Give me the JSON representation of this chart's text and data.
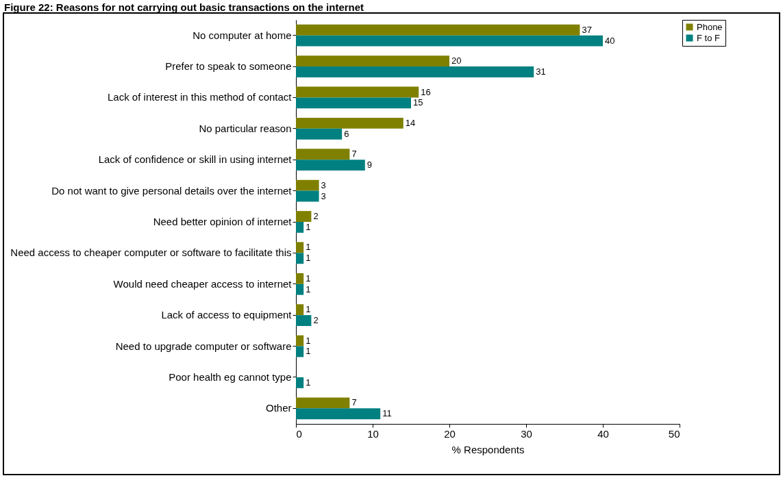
{
  "chart_data": {
    "type": "bar",
    "orientation": "horizontal",
    "title": "Figure 22: Reasons for not carrying out basic transactions on the internet",
    "xlabel": "% Respondents",
    "categories": [
      "No computer at home",
      "Prefer to speak to someone",
      "Lack of interest in this method of contact",
      "No particular reason",
      "Lack of confidence or skill in using internet",
      "Do not want to give personal details over the internet",
      "Need better opinion of internet",
      "Need access to cheaper computer or software to facilitate this",
      "Would need cheaper access to internet",
      "Lack of access to equipment",
      "Need to upgrade computer or software",
      "Poor health eg cannot type",
      "Other"
    ],
    "series": [
      {
        "name": "Phone",
        "color": "#808000",
        "values": [
          37,
          20,
          16,
          14,
          7,
          3,
          2,
          1,
          1,
          1,
          1,
          null,
          7
        ]
      },
      {
        "name": "F to F",
        "color": "#008080",
        "values": [
          40,
          31,
          15,
          6,
          9,
          3,
          1,
          1,
          1,
          2,
          1,
          1,
          11
        ]
      }
    ],
    "xlim": [
      0,
      50
    ],
    "xticks": [
      0,
      10,
      20,
      30,
      40,
      50
    ],
    "data_labels": true,
    "legend": "right",
    "grid": false
  }
}
